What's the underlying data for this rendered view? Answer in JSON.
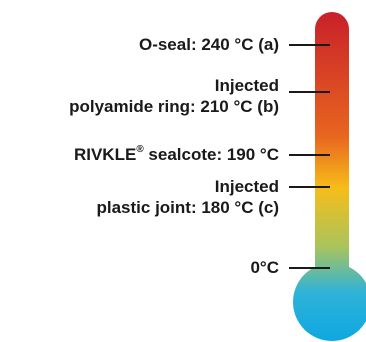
{
  "labels": {
    "o_seal": {
      "text": "O-seal: 240 °C (a)"
    },
    "polyamide": {
      "line1": "Injected",
      "line2": "polyamide ring: 210 °C (b)"
    },
    "rivkle": {
      "name": "RIVKLE",
      "reg": "®",
      "value": " sealcote: 190 °C"
    },
    "plastic": {
      "line1": "Injected",
      "line2": "plastic joint: 180 °C (c)"
    },
    "zero": {
      "text": "0°C"
    }
  },
  "colors": {
    "top_red": "#c8202a",
    "orange": "#e8651f",
    "yellow": "#f6bd19",
    "green": "#a9c45c",
    "cyan": "#2fb3d8",
    "bulb_blue": "#10a8e0",
    "text": "#1a1a1a",
    "tick": "#1a1a1a"
  }
}
